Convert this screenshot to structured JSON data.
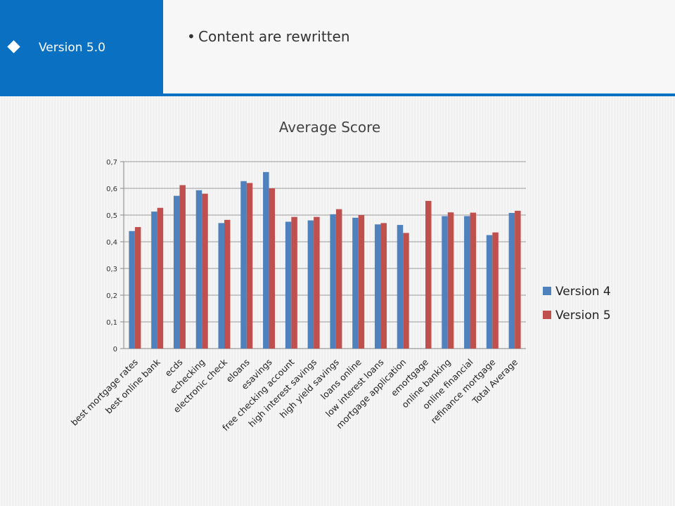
{
  "header": {
    "section_label": "Version 5.0",
    "bullet": "•",
    "content_text": "Content are rewritten"
  },
  "colors": {
    "accent": "#0a70c2",
    "version4": "#4f81bd",
    "version5": "#c0504d"
  },
  "chart_data": {
    "type": "bar",
    "title": "Average Score",
    "xlabel": "",
    "ylabel": "",
    "ylim": [
      0,
      0.7
    ],
    "yticks": [
      "0",
      "0,1",
      "0,2",
      "0,3",
      "0,4",
      "0,5",
      "0,6",
      "0,7"
    ],
    "grid": true,
    "legend_position": "right",
    "categories": [
      "best mortgage rates",
      "best online bank",
      "ecds",
      "echecking",
      "electronic check",
      "eloans",
      "esavings",
      "free checking account",
      "high interest savings",
      "high yield savings",
      "loans online",
      "low interest loans",
      "mortgage application",
      "emortgage",
      "online banking",
      "online financial",
      "refinance mortgage",
      "Total Average"
    ],
    "series": [
      {
        "name": "Version 4",
        "values": [
          0.44,
          0.513,
          0.572,
          0.593,
          0.47,
          0.627,
          0.661,
          0.475,
          0.48,
          0.503,
          0.49,
          0.465,
          0.463,
          null,
          0.496,
          0.496,
          0.425,
          0.508
        ]
      },
      {
        "name": "Version 5",
        "values": [
          0.455,
          0.527,
          0.612,
          0.58,
          0.482,
          0.62,
          0.6,
          0.493,
          0.493,
          0.522,
          0.5,
          0.47,
          0.433,
          0.553,
          0.51,
          0.509,
          0.435,
          0.516
        ]
      }
    ]
  }
}
